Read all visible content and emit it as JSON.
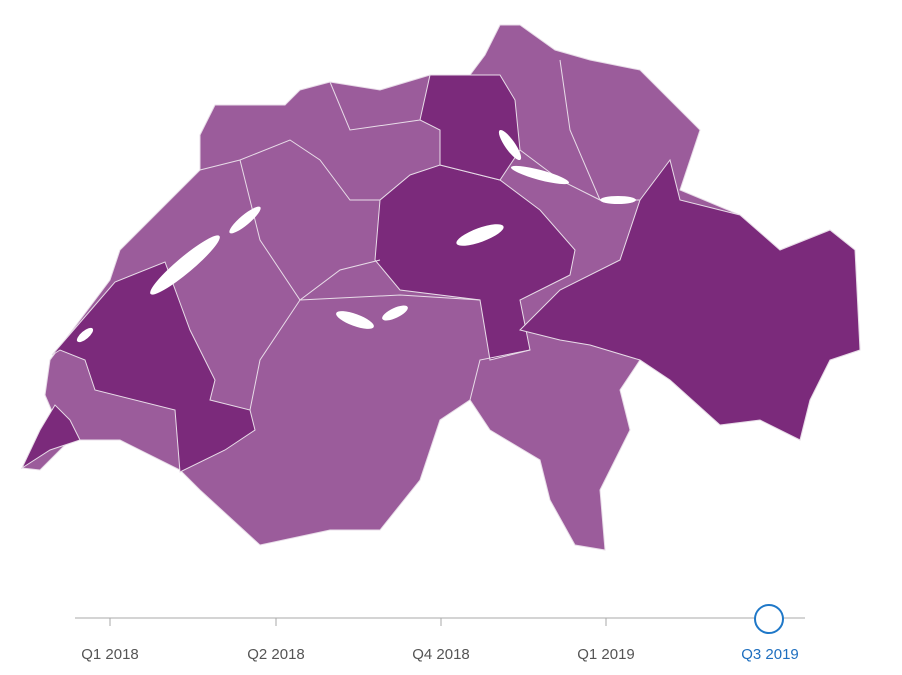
{
  "timeline": {
    "ticks": [
      "Q1 2018",
      "Q2 2018",
      "Q4 2018",
      "Q1 2019",
      "Q3 2019"
    ]
  }
}
